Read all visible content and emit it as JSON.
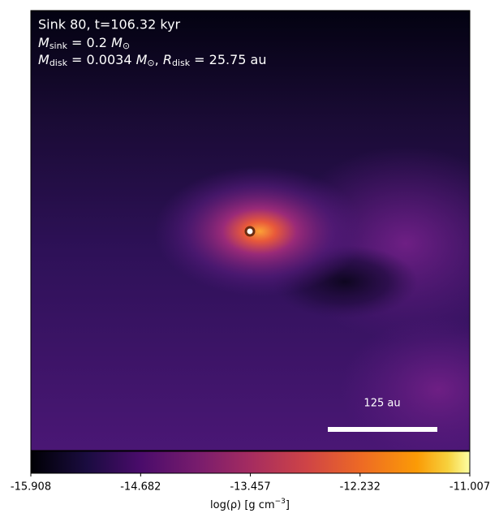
{
  "chart_data": {
    "type": "heatmap",
    "annotations": {
      "title": "Sink 80, t=106.32 kyr",
      "sink_mass": {
        "symbol": "M",
        "sub": "sink",
        "value": " = 0.2 ",
        "unit": "M",
        "unit_sub": "⊙"
      },
      "disk": {
        "symbol": "M",
        "sub": "disk",
        "value": " = 0.0034 ",
        "unit": "M",
        "unit_sub": "⊙",
        "sep": ", ",
        "r_symbol": "R",
        "r_sub": "disk",
        "r_value": " = 25.75 au"
      }
    },
    "scale_bar": "125 au",
    "colorbar": {
      "label": {
        "text": "log(ρ) [g cm",
        "sup": "−3",
        "close": "]"
      },
      "clim": [
        -15.908,
        -11.007
      ],
      "ticks": [
        -15.908,
        -14.682,
        -13.457,
        -12.232,
        -11.007
      ]
    }
  }
}
